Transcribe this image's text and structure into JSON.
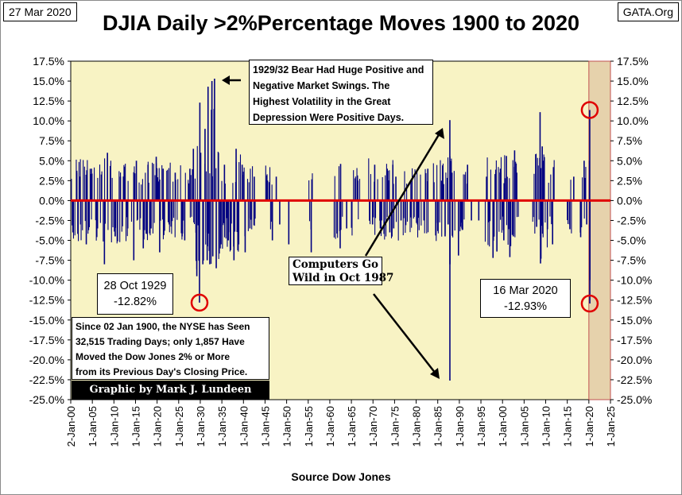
{
  "header": {
    "date": "27 Mar 2020",
    "source_site": "GATA.Org",
    "title": "DJIA Daily >2%Percentage Moves 1900 to 2020"
  },
  "footer": {
    "source": "Source Dow Jones"
  },
  "annotations": {
    "bear_1929": {
      "lines": [
        "1929/32  Bear Had Huge Positive and",
        "Negative Market Swings.  The",
        "Highest Volatility in the Great",
        "Depression Were Positive Days."
      ]
    },
    "oct_1929": {
      "date": "28 Oct 1929",
      "value": "-12.82%"
    },
    "mar_2020": {
      "date": "16 Mar 2020",
      "value": "-12.93%"
    },
    "computers": {
      "lines": [
        "Computers Go",
        "Wild in Oct 1987"
      ]
    },
    "note": {
      "lines": [
        "Since 02 Jan 1900,  the NYSE has Seen",
        "32,515  Trading Days;  only 1,857  Have",
        "Moved the Dow Jones 2% or More",
        "from its Previous Day's Closing Price."
      ]
    },
    "credit": "Graphic by Mark J. Lundeen"
  },
  "colors": {
    "plot_bg": "#f8f3c4",
    "bars": "#000080",
    "zero_line": "#e00000",
    "shade": "#e6d2ac",
    "marker": "#e00000"
  },
  "chart_data": {
    "type": "bar",
    "title": "DJIA Daily >2%Percentage Moves 1900 to 2020",
    "xlabel": "Source Dow Jones",
    "ylabel": "",
    "ylim": [
      -25.0,
      17.5
    ],
    "xlim": [
      1900,
      2025
    ],
    "yticks": [
      "17.5%",
      "15.0%",
      "12.5%",
      "10.0%",
      "7.5%",
      "5.0%",
      "2.5%",
      "0.0%",
      "-2.5%",
      "-5.0%",
      "-7.5%",
      "-10.0%",
      "-12.5%",
      "-15.0%",
      "-17.5%",
      "-20.0%",
      "-22.5%",
      "-25.0%"
    ],
    "ytick_values": [
      17.5,
      15,
      12.5,
      10,
      7.5,
      5,
      2.5,
      0,
      -2.5,
      -5,
      -7.5,
      -10,
      -12.5,
      -15,
      -17.5,
      -20,
      -22.5,
      -25
    ],
    "xticks": [
      "2-Jan-00",
      "1-Jan-05",
      "1-Jan-10",
      "1-Jan-15",
      "1-Jan-20",
      "1-Jan-25",
      "1-Jan-30",
      "1-Jan-35",
      "1-Jan-40",
      "1-Jan-45",
      "1-Jan-50",
      "1-Jan-55",
      "1-Jan-60",
      "1-Jan-65",
      "1-Jan-70",
      "1-Jan-75",
      "1-Jan-80",
      "1-Jan-85",
      "1-Jan-90",
      "1-Jan-95",
      "1-Jan-00",
      "1-Jan-05",
      "1-Jan-10",
      "1-Jan-15",
      "1-Jan-20",
      "1-Jan-25"
    ],
    "xtick_values": [
      1900,
      1905,
      1910,
      1915,
      1920,
      1925,
      1930,
      1935,
      1940,
      1945,
      1950,
      1955,
      1960,
      1965,
      1970,
      1975,
      1980,
      1985,
      1990,
      1995,
      2000,
      2005,
      2010,
      2015,
      2020,
      2025
    ],
    "shaded_region": [
      2020,
      2025
    ],
    "highlighted_points": [
      {
        "x": 1929.82,
        "y": -12.82,
        "label": "28 Oct 1929"
      },
      {
        "x": 2020.2,
        "y": -12.93,
        "label": "16 Mar 2020"
      },
      {
        "x": 2020.2,
        "y": 11.37,
        "label": ""
      }
    ],
    "series": [
      {
        "name": "Daily % moves >2%",
        "x": [
          1900.5,
          1901.4,
          1902.3,
          1903.6,
          1904.8,
          1906.2,
          1907.8,
          1908.5,
          1910.3,
          1911.5,
          1913.2,
          1914.6,
          1915.2,
          1916.8,
          1917.9,
          1918.6,
          1919.8,
          1920.6,
          1921.4,
          1922.8,
          1924.2,
          1925.8,
          1926.4,
          1927.6,
          1928.4,
          1929.2,
          1929.82,
          1929.9,
          1930.1,
          1930.6,
          1931.1,
          1931.6,
          1931.8,
          1932.2,
          1932.6,
          1932.7,
          1932.9,
          1933.2,
          1933.3,
          1933.7,
          1934.2,
          1934.8,
          1935.6,
          1936.5,
          1937.8,
          1938.3,
          1938.9,
          1939.7,
          1940.4,
          1941.5,
          1942.5,
          1946.7,
          1947.6,
          1948.4,
          1950.5,
          1955.7,
          1962.4,
          1962.5,
          1963.9,
          1966.5,
          1969.9,
          1970.4,
          1971.7,
          1973.3,
          1973.9,
          1974.6,
          1974.8,
          1975.3,
          1976.5,
          1978.8,
          1980.3,
          1981.8,
          1982.7,
          1984.6,
          1985.9,
          1986.7,
          1987.4,
          1987.8,
          1987.81,
          1987.83,
          1988.3,
          1989.8,
          1990.6,
          1991.9,
          1992.8,
          1994.5,
          1996.3,
          1997.8,
          1998.7,
          1999.5,
          2000.3,
          2000.9,
          2001.7,
          2002.5,
          2002.8,
          2003.3,
          2007.9,
          2008.7,
          2008.8,
          2008.9,
          2009.2,
          2009.5,
          2010.4,
          2011.6,
          2011.8,
          2015.6,
          2016.5,
          2018.1,
          2018.9,
          2019.5,
          2020.15,
          2020.2,
          2020.22,
          2020.25
        ],
        "values": [
          -4.0,
          3.5,
          -3.0,
          -5.5,
          4.0,
          -3.5,
          -8.0,
          6.0,
          -4.5,
          3.0,
          -3.5,
          -7.5,
          5.0,
          -6.0,
          4.5,
          -3.5,
          5.5,
          -6.5,
          4.0,
          -3.0,
          3.5,
          -4.5,
          -5.0,
          4.0,
          6.5,
          -9.5,
          -12.82,
          12.3,
          6.0,
          -8.0,
          9.0,
          -7.5,
          14.3,
          -8.0,
          11.4,
          15.0,
          -7.0,
          11.5,
          15.3,
          -8.5,
          6.0,
          -5.5,
          4.5,
          -5.0,
          -7.5,
          6.5,
          -5.5,
          4.5,
          -6.5,
          -3.5,
          3.0,
          -5.0,
          3.0,
          -3.0,
          -5.5,
          -6.5,
          -6.0,
          4.6,
          -3.5,
          2.5,
          -3.0,
          4.5,
          -3.5,
          4.0,
          -4.0,
          4.5,
          -3.5,
          3.0,
          -2.5,
          2.5,
          -3.0,
          -2.5,
          4.0,
          -2.8,
          2.5,
          -4.5,
          -3.0,
          10.1,
          -22.6,
          -8.0,
          3.5,
          -6.9,
          -3.5,
          4.5,
          -2.5,
          -2.5,
          3.0,
          -7.2,
          -6.4,
          4.0,
          -5.0,
          5.6,
          -7.1,
          -4.5,
          6.3,
          3.5,
          -3.3,
          11.1,
          -7.9,
          -7.3,
          6.8,
          5.0,
          -3.6,
          -5.5,
          4.2,
          -3.6,
          3.0,
          -4.6,
          5.0,
          -3.0,
          5.0,
          11.37,
          -12.93,
          -9.99
        ]
      }
    ]
  }
}
